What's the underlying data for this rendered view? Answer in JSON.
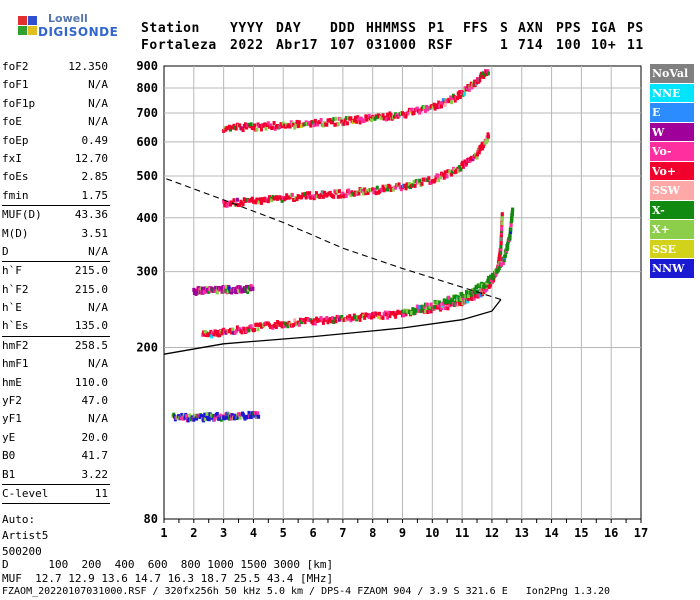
{
  "logo": {
    "line1": "Lowell",
    "line2": "DIGISONDE"
  },
  "header": {
    "labels": [
      "Station",
      "YYYY",
      "DAY",
      "DDD",
      "HHMMSS",
      "P1",
      "FFS",
      "S",
      "AXN",
      "PPS",
      "IGA",
      "PS"
    ],
    "values": [
      "Fortaleza",
      "2022",
      "Abr17",
      "107",
      "031000",
      "RSF",
      "",
      "1",
      "714",
      "100",
      "10+",
      "11"
    ]
  },
  "params_group1": [
    {
      "k": "foF2",
      "v": "12.350"
    },
    {
      "k": "foF1",
      "v": "N/A"
    },
    {
      "k": "foF1p",
      "v": "N/A"
    },
    {
      "k": "foE",
      "v": "N/A"
    },
    {
      "k": "foEp",
      "v": "0.49"
    },
    {
      "k": "fxI",
      "v": "12.70"
    },
    {
      "k": "foEs",
      "v": "2.85"
    },
    {
      "k": "fmin",
      "v": "1.75"
    }
  ],
  "params_group2": [
    {
      "k": "MUF(D)",
      "v": "43.36"
    },
    {
      "k": "M(D)",
      "v": "3.51"
    },
    {
      "k": "D",
      "v": "N/A"
    }
  ],
  "params_group3": [
    {
      "k": "h`F",
      "v": "215.0"
    },
    {
      "k": "h`F2",
      "v": "215.0"
    },
    {
      "k": "h`E",
      "v": "N/A"
    },
    {
      "k": "h`Es",
      "v": "135.0"
    }
  ],
  "params_group4": [
    {
      "k": "hmF2",
      "v": "258.5"
    },
    {
      "k": "hmF1",
      "v": "N/A"
    },
    {
      "k": "hmE",
      "v": "110.0"
    },
    {
      "k": "yF2",
      "v": "47.0"
    },
    {
      "k": "yF1",
      "v": "N/A"
    },
    {
      "k": "yE",
      "v": "20.0"
    },
    {
      "k": "B0",
      "v": "41.7"
    },
    {
      "k": "B1",
      "v": "3.22"
    }
  ],
  "params_group5": [
    {
      "k": "C-level",
      "v": "11"
    }
  ],
  "autoscale": {
    "line1": "Auto:",
    "line2": "Artist5",
    "line3": "500200"
  },
  "legend": [
    {
      "label": "NoVal",
      "color": "#808080"
    },
    {
      "label": "NNE",
      "color": "#00e5ff"
    },
    {
      "label": "E",
      "color": "#2b8cff"
    },
    {
      "label": "W",
      "color": "#a0009a"
    },
    {
      "label": "Vo-",
      "color": "#ff2fa0"
    },
    {
      "label": "Vo+",
      "color": "#f0002a"
    },
    {
      "label": "SSW",
      "color": "#ffa8a8"
    },
    {
      "label": "X-",
      "color": "#108a10"
    },
    {
      "label": "X+",
      "color": "#8ccd4a"
    },
    {
      "label": "SSE",
      "color": "#d2d21a"
    },
    {
      "label": "NNW",
      "color": "#1a1ad2"
    }
  ],
  "footer": {
    "d_line": "D      100  200  400  600  800 1000 1500 3000 [km]",
    "muf_line": "MUF  12.7 12.9 13.6 14.7 16.3 18.7 25.5 43.4 [MHz]",
    "file_line": "FZAOM_20220107031000.RSF / 320fx256h 50 kHz 5.0 km / DPS-4 FZAOM 904 / 3.9 S 321.6 E   Ion2Png 1.3.20"
  },
  "chart_data": {
    "type": "scatter",
    "title": "",
    "xlabel": "",
    "ylabel": "",
    "xlim": [
      1,
      17
    ],
    "ylim": [
      80,
      900
    ],
    "x_scale": "linear",
    "y_scale": "log",
    "x_ticks": [
      1,
      2,
      3,
      4,
      5,
      6,
      7,
      8,
      9,
      10,
      11,
      12,
      13,
      14,
      15,
      16,
      17
    ],
    "y_ticks": [
      80,
      200,
      300,
      400,
      500,
      600,
      700,
      800,
      900
    ],
    "grid": true,
    "legend_position": "right",
    "traces": [
      {
        "name": "F2 O-trace",
        "color": "#f0002a",
        "points": [
          [
            2.3,
            214
          ],
          [
            3,
            217
          ],
          [
            4,
            222
          ],
          [
            5,
            227
          ],
          [
            6,
            230
          ],
          [
            7,
            233
          ],
          [
            8,
            236
          ],
          [
            9,
            240
          ],
          [
            10,
            246
          ],
          [
            10.8,
            253
          ],
          [
            11.3,
            260
          ],
          [
            11.7,
            270
          ],
          [
            12.0,
            285
          ],
          [
            12.2,
            305
          ],
          [
            12.3,
            340
          ],
          [
            12.35,
            410
          ]
        ]
      },
      {
        "name": "F2 X-trace",
        "color": "#108a10",
        "points": [
          [
            9,
            240
          ],
          [
            10,
            250
          ],
          [
            10.8,
            260
          ],
          [
            11.4,
            270
          ],
          [
            12.0,
            290
          ],
          [
            12.4,
            320
          ],
          [
            12.6,
            360
          ],
          [
            12.7,
            420
          ]
        ]
      },
      {
        "name": "F2 2nd hop",
        "color": "#f0002a",
        "points": [
          [
            3,
            430
          ],
          [
            4,
            438
          ],
          [
            5,
            445
          ],
          [
            6,
            450
          ],
          [
            7,
            455
          ],
          [
            8,
            462
          ],
          [
            9,
            472
          ],
          [
            10,
            490
          ],
          [
            10.8,
            515
          ],
          [
            11.5,
            560
          ],
          [
            11.9,
            620
          ]
        ]
      },
      {
        "name": "F2 3rd hop",
        "color": "#f0002a",
        "points": [
          [
            3,
            645
          ],
          [
            4,
            650
          ],
          [
            5,
            655
          ],
          [
            6,
            662
          ],
          [
            7,
            670
          ],
          [
            8,
            680
          ],
          [
            9,
            695
          ],
          [
            10,
            722
          ],
          [
            10.8,
            760
          ],
          [
            11.4,
            820
          ],
          [
            11.9,
            880
          ]
        ]
      },
      {
        "name": "Es trace",
        "color": "#1a1ad2",
        "points": [
          [
            1.3,
            138
          ],
          [
            2,
            137
          ],
          [
            2.5,
            138
          ],
          [
            3,
            138
          ],
          [
            3.5,
            139
          ],
          [
            4.2,
            139
          ]
        ]
      },
      {
        "name": "Es 2nd hop",
        "color": "#a0009a",
        "points": [
          [
            2,
            270
          ],
          [
            2.5,
            272
          ],
          [
            3,
            273
          ],
          [
            3.5,
            272
          ],
          [
            4,
            274
          ]
        ]
      }
    ],
    "profile": [
      [
        1,
        193
      ],
      [
        3,
        204
      ],
      [
        6,
        212
      ],
      [
        9,
        222
      ],
      [
        11,
        232
      ],
      [
        12,
        243
      ],
      [
        12.3,
        258.5
      ]
    ],
    "profile_upper": [
      [
        12.3,
        258.5
      ],
      [
        11,
        276
      ],
      [
        9,
        305
      ],
      [
        7,
        340
      ],
      [
        5,
        390
      ],
      [
        3,
        440
      ],
      [
        1,
        495
      ]
    ]
  }
}
